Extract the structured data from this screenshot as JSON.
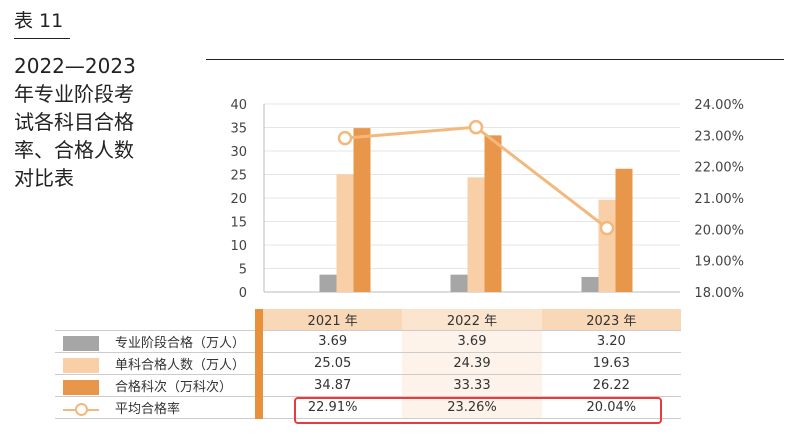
{
  "header": {
    "table_label": "表 11",
    "title_lines": [
      "2022—2023",
      "年专业阶段考",
      "试各科目合格",
      "率、合格人数",
      "对比表"
    ]
  },
  "chart_data": {
    "type": "bar",
    "categories": [
      "2021 年",
      "2022 年",
      "2023 年"
    ],
    "series": [
      {
        "name": "专业阶段合格（万人）",
        "values": [
          3.69,
          3.69,
          3.2
        ],
        "color": "#a6a6a6",
        "axis": "left",
        "kind": "bar"
      },
      {
        "name": "单科合格人数（万人）",
        "values": [
          25.05,
          24.39,
          19.63
        ],
        "color": "#f9cfa7",
        "axis": "left",
        "kind": "bar"
      },
      {
        "name": "合格科次（万科次）",
        "values": [
          34.87,
          33.33,
          26.22
        ],
        "color": "#e8974a",
        "axis": "left",
        "kind": "bar"
      },
      {
        "name": "平均合格率",
        "values": [
          "22.91%",
          "23.26%",
          "20.04%"
        ],
        "numeric": [
          22.91,
          23.26,
          20.04
        ],
        "color": "#f3b87e",
        "axis": "right",
        "kind": "line"
      }
    ],
    "left_axis": {
      "ylim": [
        0,
        40
      ],
      "ticks": [
        "0",
        "5",
        "10",
        "15",
        "20",
        "25",
        "30",
        "35",
        "40"
      ]
    },
    "right_axis": {
      "ylim": [
        18,
        24
      ],
      "ticks": [
        "18.00%",
        "19.00%",
        "20.00%",
        "21.00%",
        "22.00%",
        "23.00%",
        "24.00%"
      ]
    },
    "table": {
      "rows": [
        {
          "label": "专业阶段合格（万人）",
          "values": [
            "3.69",
            "3.69",
            "3.20"
          ]
        },
        {
          "label": "单科合格人数（万人）",
          "values": [
            "25.05",
            "24.39",
            "19.63"
          ]
        },
        {
          "label": "合格科次（万科次）",
          "values": [
            "34.87",
            "33.33",
            "26.22"
          ]
        },
        {
          "label": "平均合格率",
          "values": [
            "22.91%",
            "23.26%",
            "20.04%"
          ]
        }
      ]
    }
  }
}
